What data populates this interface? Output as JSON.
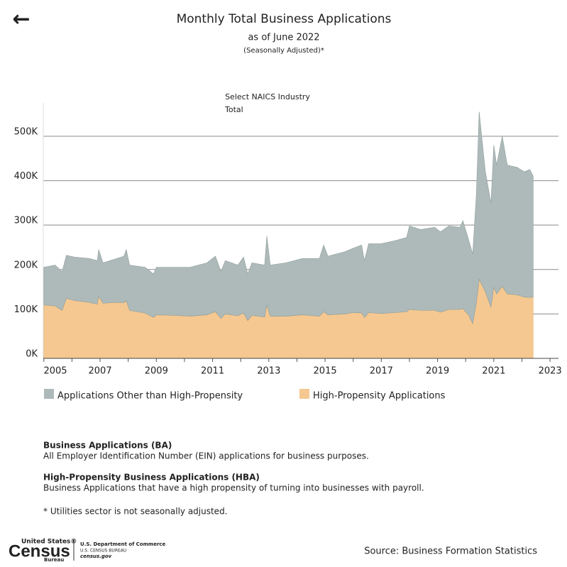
{
  "header": {
    "back": "←",
    "title": "Monthly Total Business Applications",
    "subtitle": "as of June 2022",
    "note": "(Seasonally Adjusted)*"
  },
  "filter": {
    "label": "Select NAICS Industry",
    "value": "Total"
  },
  "chart_data": {
    "type": "area",
    "x": [
      2005.0,
      2005.4,
      2005.65,
      2005.8,
      2006.1,
      2006.6,
      2006.9,
      2006.95,
      2007.1,
      2007.6,
      2007.85,
      2007.93,
      2008.05,
      2008.6,
      2008.9,
      2009.0,
      2009.6,
      2010.2,
      2010.8,
      2011.1,
      2011.3,
      2011.45,
      2011.9,
      2012.1,
      2012.25,
      2012.4,
      2012.85,
      2012.93,
      2013.05,
      2013.6,
      2014.2,
      2014.8,
      2014.95,
      2015.1,
      2015.7,
      2016.0,
      2016.3,
      2016.4,
      2016.55,
      2017.0,
      2017.5,
      2017.9,
      2018.0,
      2018.4,
      2018.9,
      2019.1,
      2019.4,
      2019.8,
      2019.9,
      2020.1,
      2020.25,
      2020.38,
      2020.48,
      2020.7,
      2020.9,
      2021.0,
      2021.1,
      2021.3,
      2021.48,
      2021.83,
      2022.08,
      2022.28,
      2022.4
    ],
    "series": [
      {
        "name": "High-Propensity Applications",
        "color": "#f5c891",
        "values": [
          120000,
          118000,
          108000,
          135000,
          130000,
          126000,
          122000,
          140000,
          124000,
          126000,
          125000,
          130000,
          108000,
          102000,
          92000,
          98000,
          97000,
          95000,
          98000,
          105000,
          90000,
          100000,
          96000,
          102000,
          85000,
          97000,
          93000,
          120000,
          95000,
          95000,
          98000,
          95000,
          105000,
          98000,
          100000,
          103000,
          102000,
          92000,
          103000,
          101000,
          103000,
          105000,
          110000,
          108000,
          108000,
          104000,
          110000,
          110000,
          112000,
          98000,
          78000,
          125000,
          178000,
          150000,
          115000,
          160000,
          145000,
          162000,
          145000,
          143000,
          138000,
          137000,
          138000
        ]
      },
      {
        "name": "Applications Other than High-Propensity",
        "color": "#adbab9",
        "values": [
          85000,
          92000,
          87000,
          97000,
          98000,
          99000,
          98000,
          105000,
          91000,
          99000,
          105000,
          115000,
          102000,
          103000,
          98000,
          107000,
          108000,
          110000,
          117000,
          125000,
          105000,
          120000,
          114000,
          126000,
          105000,
          118000,
          117000,
          155000,
          115000,
          120000,
          127000,
          130000,
          150000,
          132000,
          140000,
          145000,
          153000,
          128000,
          155000,
          157000,
          162000,
          167000,
          188000,
          182000,
          187000,
          181000,
          188000,
          185000,
          198000,
          170000,
          157000,
          245000,
          377000,
          270000,
          235000,
          320000,
          290000,
          338000,
          290000,
          287000,
          282000,
          288000,
          272000
        ]
      }
    ],
    "xlim": [
      2004.98,
      2023.3
    ],
    "xticks": [
      2005,
      2006,
      2007,
      2008,
      2009,
      2010,
      2011,
      2012,
      2013,
      2014,
      2015,
      2016,
      2017,
      2018,
      2019,
      2020,
      2021,
      2022,
      2023
    ],
    "xtick_labels": [
      "2005",
      "2007",
      "2009",
      "2011",
      "2013",
      "2015",
      "2017",
      "2019",
      "2021",
      "2023"
    ],
    "ylim": [
      0,
      575000
    ],
    "yticks": [
      {
        "value": 0,
        "label": "0K"
      },
      {
        "value": 100000,
        "label": "100K"
      },
      {
        "value": 200000,
        "label": "200K"
      },
      {
        "value": 300000,
        "label": "300K"
      },
      {
        "value": 400000,
        "label": "400K"
      },
      {
        "value": 500000,
        "label": "500K"
      }
    ],
    "grid": true
  },
  "notes": [
    {
      "title": "Business Applications (BA)",
      "text": "All Employer Identification Number (EIN) applications for business purposes."
    },
    {
      "title": "High-Propensity Business Applications (HBA)",
      "text": "Business Applications that have a high propensity of turning into businesses with payroll."
    },
    {
      "text": "* Utilities sector is not seasonally adjusted."
    }
  ],
  "footer": {
    "logo": [
      "United States®",
      "Census",
      "Bureau"
    ],
    "dept": [
      "U.S. Department of Commerce",
      "U.S. CENSUS BUREAU",
      "census.gov"
    ],
    "source": "Source: Business Formation Statistics"
  }
}
